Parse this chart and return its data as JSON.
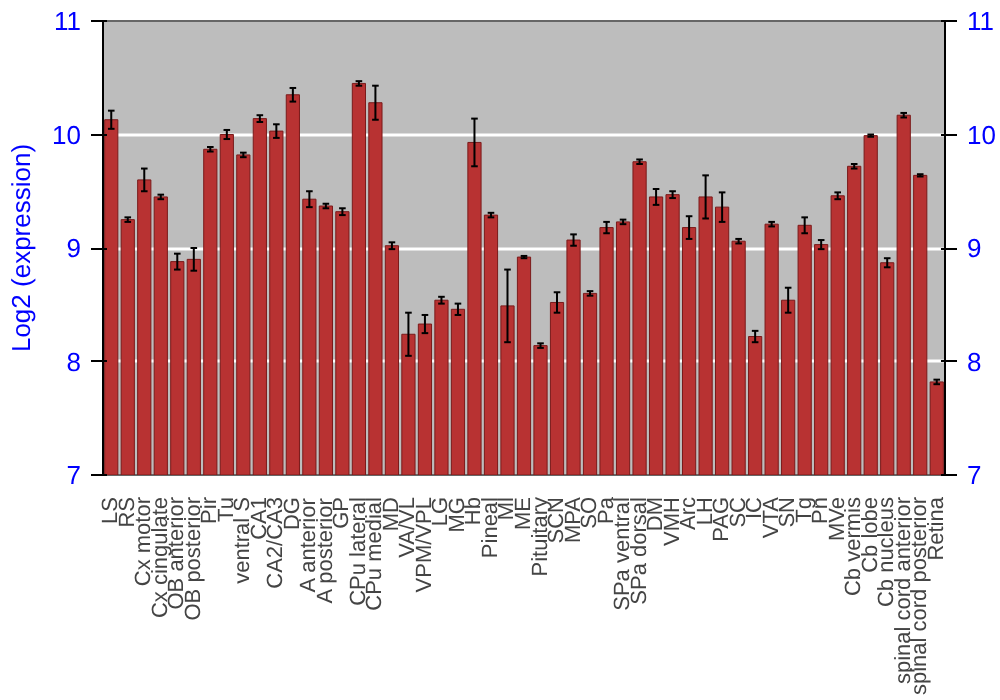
{
  "chart_data": {
    "type": "bar",
    "ylabel": "Log2 (expression)",
    "categories": [
      "LS",
      "RS",
      "Cx motor",
      "Cx cingulate",
      "OB anterior",
      "OB posterior",
      "Pir",
      "Tu",
      "ventral S",
      "CA1",
      "CA2/CA3",
      "DG",
      "A anterior",
      "A posterior",
      "GP",
      "CPu lateral",
      "CPu medial",
      "MD",
      "VA/VL",
      "VPM/VPL",
      "LG",
      "MG",
      "Hb",
      "Pineal",
      "Ml",
      "ME",
      "Pituitary",
      "SCN",
      "MPA",
      "SO",
      "Pa",
      "SPa ventral",
      "SPa dorsal",
      "DM",
      "VMH",
      "Arc",
      "LH",
      "PAG",
      "SC",
      "IC",
      "VTA",
      "SN",
      "Tg",
      "Pn",
      "MVe",
      "Cb vermis",
      "Cb lobe",
      "Cb nucleus",
      "spinal cord anterior",
      "spinal cord posterior",
      "Retina"
    ],
    "values": [
      10.13,
      9.25,
      9.6,
      9.45,
      8.88,
      8.9,
      9.87,
      10.0,
      9.82,
      10.14,
      10.03,
      10.35,
      9.43,
      9.37,
      9.32,
      10.45,
      10.28,
      9.02,
      8.24,
      8.33,
      8.54,
      8.46,
      9.93,
      9.29,
      8.49,
      8.92,
      8.14,
      8.52,
      9.07,
      8.6,
      9.18,
      9.23,
      9.76,
      9.45,
      9.47,
      9.18,
      9.45,
      9.36,
      9.06,
      8.22,
      9.21,
      8.54,
      9.2,
      9.03,
      9.46,
      9.72,
      9.99,
      8.87,
      10.17,
      9.64,
      7.82
    ],
    "errors": [
      0.08,
      0.02,
      0.1,
      0.02,
      0.07,
      0.1,
      0.02,
      0.04,
      0.02,
      0.03,
      0.06,
      0.06,
      0.07,
      0.02,
      0.03,
      0.02,
      0.15,
      0.03,
      0.19,
      0.08,
      0.03,
      0.05,
      0.21,
      0.02,
      0.32,
      0.01,
      0.02,
      0.09,
      0.05,
      0.02,
      0.05,
      0.02,
      0.02,
      0.07,
      0.03,
      0.1,
      0.19,
      0.13,
      0.02,
      0.05,
      0.02,
      0.11,
      0.07,
      0.04,
      0.03,
      0.02,
      0.01,
      0.04,
      0.02,
      0.01,
      0.02
    ],
    "color": "#b83232",
    "ylim": [
      7,
      11
    ],
    "yticks": [
      7,
      8,
      9,
      10,
      11
    ],
    "y2lim": [
      7,
      11
    ],
    "y2ticks": [
      7,
      8,
      9,
      10,
      11
    ],
    "grid": "y"
  }
}
